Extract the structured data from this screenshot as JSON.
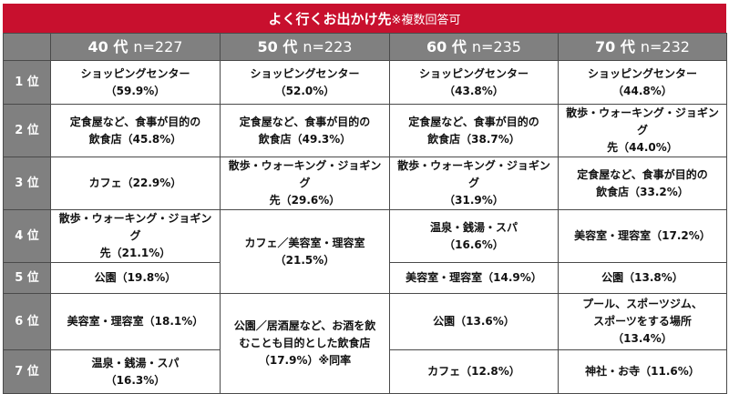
{
  "title": {
    "main": "よく行くお出かけ先",
    "note": "※複数回答可"
  },
  "columns": [
    {
      "age": "40 代",
      "n": "n=227"
    },
    {
      "age": "50 代",
      "n": "n=223"
    },
    {
      "age": "60 代",
      "n": "n=235"
    },
    {
      "age": "70 代",
      "n": "n=232"
    }
  ],
  "ranks": [
    "1 位",
    "2 位",
    "3 位",
    "4 位",
    "5 位",
    "6 位",
    "7 位"
  ],
  "cells": {
    "r1c1": [
      "ショッピングセンター",
      "（59.9%）"
    ],
    "r1c2": [
      "ショッピングセンター",
      "（52.0%）"
    ],
    "r1c3": [
      "ショッピングセンター",
      "（43.8%）"
    ],
    "r1c4": [
      "ショッピングセンター",
      "（44.8%）"
    ],
    "r2c1": [
      "定食屋など、食事が目的の",
      "飲食店（45.8%）"
    ],
    "r2c2": [
      "定食屋など、食事が目的の",
      "飲食店（49.3%）"
    ],
    "r2c3": [
      "定食屋など、食事が目的の",
      "飲食店（38.7%）"
    ],
    "r2c4": [
      "散歩・ウォーキング・ジョギング",
      "先（44.0%）"
    ],
    "r3c1": [
      "カフェ（22.9%）"
    ],
    "r3c2": [
      "散歩・ウォーキング・ジョギング",
      "先（29.6%）"
    ],
    "r3c3": [
      "散歩・ウォーキング・ジョギング",
      "（31.9%）"
    ],
    "r3c4": [
      "定食屋など、食事が目的の",
      "飲食店（33.2%）"
    ],
    "r4c1": [
      "散歩・ウォーキング・ジョギング",
      "先（21.1%）"
    ],
    "r45c2": [
      "カフェ／美容室・理容室",
      "（21.5%）"
    ],
    "r4c3": [
      "温泉・銭湯・スパ",
      "（16.6%）"
    ],
    "r4c4": [
      "美容室・理容室（17.2%）"
    ],
    "r5c1": [
      "公園（19.8%）"
    ],
    "r5c3": [
      "美容室・理容室（14.9%）"
    ],
    "r5c4": [
      "公園（13.8%）"
    ],
    "r6c1": [
      "美容室・理容室（18.1%）"
    ],
    "r67c2": [
      "公園／居酒屋など、お酒を飲",
      "むことも目的とした飲食店",
      "（17.9%）※同率"
    ],
    "r6c3": [
      "公園（13.6%）"
    ],
    "r6c4": [
      "プール、スポーツジム、",
      "スポーツをする場所",
      "（13.4%）"
    ],
    "r7c1": [
      "温泉・銭湯・スパ",
      "（16.3%）"
    ],
    "r7c3": [
      "カフェ（12.8%）"
    ],
    "r7c4": [
      "神社・お寺（11.6%）"
    ]
  }
}
